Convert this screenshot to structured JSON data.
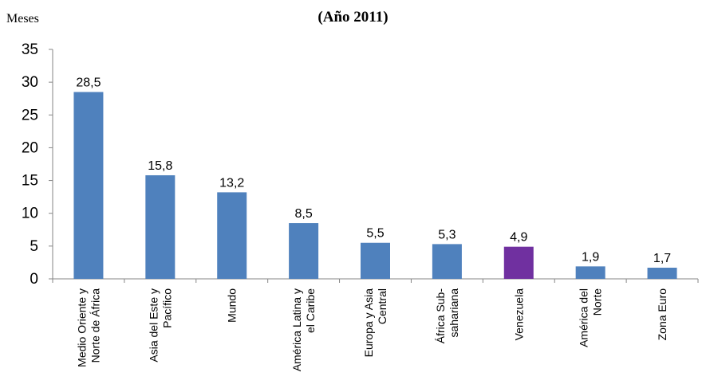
{
  "chart_data": {
    "type": "bar",
    "subtitle": "(Año 2011)",
    "ylabel": "Meses",
    "xlabel": "",
    "ylim": [
      0,
      35
    ],
    "yticks": [
      0,
      5,
      10,
      15,
      20,
      25,
      30,
      35
    ],
    "grid": false,
    "legend": "none",
    "categories": [
      [
        "Medio Oriente y",
        "Norte de África"
      ],
      [
        "Asia del Este y",
        "Pacífico"
      ],
      [
        "Mundo"
      ],
      [
        "América Latina y",
        "el Caribe"
      ],
      [
        "Europa y Asia",
        "Central"
      ],
      [
        "África Sub-",
        "sahariana"
      ],
      [
        "Venezuela"
      ],
      [
        "América del",
        "Norte"
      ],
      [
        "Zona Euro"
      ]
    ],
    "values": [
      28.5,
      15.8,
      13.2,
      8.5,
      5.5,
      5.3,
      4.9,
      1.9,
      1.7
    ],
    "value_labels": [
      "28,5",
      "15,8",
      "13,2",
      "8,5",
      "5,5",
      "5,3",
      "4,9",
      "1,9",
      "1,7"
    ],
    "colors": {
      "default": "#4f81bd",
      "highlight": "#7030a0",
      "highlight_category": "Venezuela"
    }
  }
}
